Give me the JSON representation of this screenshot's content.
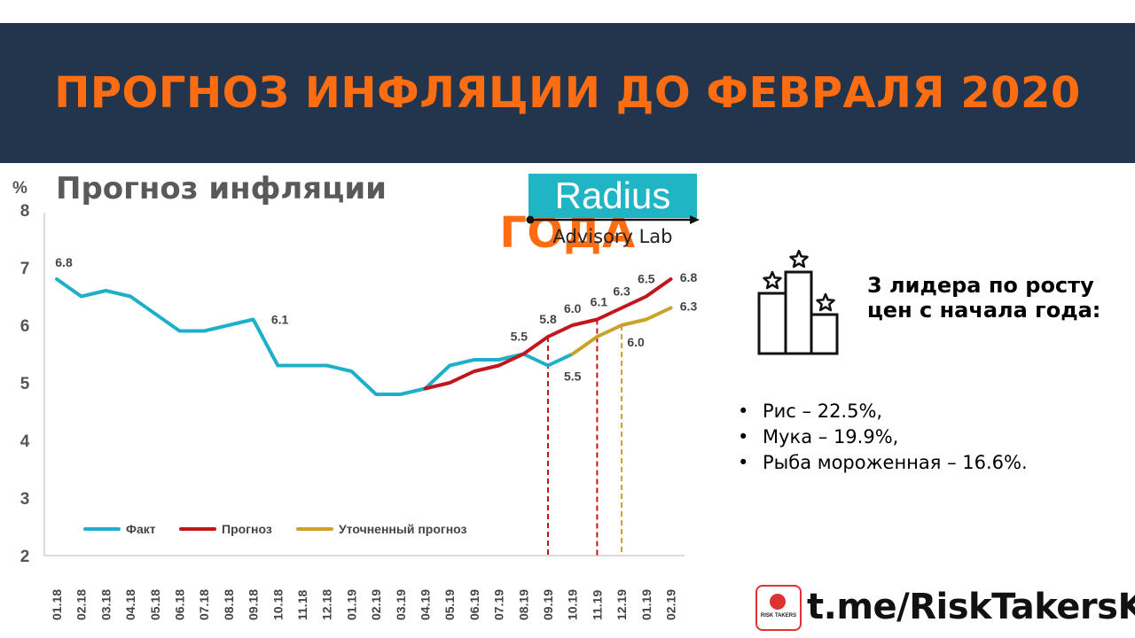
{
  "banner": {
    "title": "ПРОГНОЗ ИНФЛЯЦИИ ДО ФЕВРАЛЯ 2020 ГОДА"
  },
  "logo": {
    "name": "Radius",
    "subtitle": "Advisory Lab"
  },
  "leaders": {
    "title": "3 лидера по росту цен с начала года:",
    "items": [
      "Рис – 22.5%,",
      "Мука – 19.9%,",
      "Рыба мороженная – 16.6%."
    ]
  },
  "footer": {
    "link": "t.me/RiskTakersKZ",
    "icon_text": "RISK TAKERS"
  },
  "colors": {
    "banner_bg": "#22354c",
    "banner_text": "#ff6d12",
    "fact": "#1fb0c9",
    "forecast": "#c0161c",
    "refined": "#c9a227",
    "logo_bg": "#1fb5c4"
  },
  "chart_data": {
    "type": "line",
    "title": "Прогноз инфляции",
    "ylabel": "%",
    "ylim": [
      2,
      8
    ],
    "yticks": [
      "2",
      "3",
      "4",
      "5",
      "6",
      "7",
      "8"
    ],
    "categories": [
      "01.18",
      "02.18",
      "03.18",
      "04.18",
      "05.18",
      "06.18",
      "07.18",
      "08.18",
      "09.18",
      "10.18",
      "11.18",
      "12.18",
      "01.19",
      "02.19",
      "03.19",
      "04.19",
      "05.19",
      "06.19",
      "07.19",
      "08.19",
      "09.19",
      "10.19",
      "11.19",
      "12.19",
      "01.19",
      "02.19"
    ],
    "series": [
      {
        "name": "Факт",
        "color": "#1fb0c9",
        "values": [
          6.8,
          6.5,
          6.6,
          6.5,
          6.2,
          5.9,
          5.9,
          6.0,
          6.1,
          5.3,
          5.3,
          5.3,
          5.2,
          4.8,
          4.8,
          4.9,
          5.3,
          5.4,
          5.4,
          5.5,
          5.3,
          5.5,
          null,
          null,
          null,
          null
        ]
      },
      {
        "name": "Прогноз",
        "color": "#c0161c",
        "values": [
          null,
          null,
          null,
          null,
          null,
          null,
          null,
          null,
          null,
          null,
          null,
          null,
          null,
          null,
          null,
          4.9,
          5.0,
          5.2,
          5.3,
          5.5,
          5.8,
          6.0,
          6.1,
          6.3,
          6.5,
          6.8
        ]
      },
      {
        "name": "Уточненный прогноз",
        "color": "#c9a227",
        "values": [
          null,
          null,
          null,
          null,
          null,
          null,
          null,
          null,
          null,
          null,
          null,
          null,
          null,
          null,
          null,
          null,
          null,
          null,
          null,
          null,
          null,
          5.5,
          5.8,
          6.0,
          6.1,
          6.3
        ]
      }
    ],
    "data_labels": [
      {
        "series": 0,
        "index": 0,
        "text": "6.8"
      },
      {
        "series": 0,
        "index": 8,
        "text": "6.1"
      },
      {
        "series": 0,
        "index": 19,
        "text": "5.5"
      },
      {
        "series": 1,
        "index": 20,
        "text": "5.8"
      },
      {
        "series": 1,
        "index": 21,
        "text": "6.0"
      },
      {
        "series": 0,
        "index": 21,
        "text": "5.5"
      },
      {
        "series": 1,
        "index": 22,
        "text": "6.1"
      },
      {
        "series": 1,
        "index": 23,
        "text": "6.3"
      },
      {
        "series": 2,
        "index": 23,
        "text": "6.0"
      },
      {
        "series": 1,
        "index": 24,
        "text": "6.5"
      },
      {
        "series": 1,
        "index": 25,
        "text": "6.8"
      },
      {
        "series": 2,
        "index": 25,
        "text": "6.3"
      }
    ],
    "vlines": [
      {
        "index": 20,
        "from": 5.8,
        "color": "#c0161c"
      },
      {
        "index": 22,
        "from": 6.1,
        "color": "#c0161c"
      },
      {
        "index": 23,
        "from": 6.0,
        "color": "#c9a227"
      }
    ],
    "legend": "bottom-left",
    "grid": false
  }
}
